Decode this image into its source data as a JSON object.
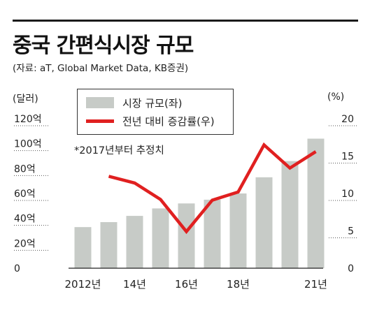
{
  "title": "중국 간편식시장 규모",
  "source": "(자료: aT, Global Market Data, KB증권)",
  "note": "*2017년부터 추정치",
  "chart_data": {
    "type": "bar",
    "categories": [
      "2012",
      "2013",
      "2014",
      "2015",
      "2016",
      "2017",
      "2018",
      "2019",
      "2020",
      "2021"
    ],
    "x_tick_labels": [
      "2012년",
      "",
      "14년",
      "",
      "16년",
      "",
      "18년",
      "",
      "",
      "21년"
    ],
    "series": [
      {
        "name": "시장 규모(좌)",
        "type": "bar",
        "axis": "left",
        "color": "#c7cbc7",
        "values": [
          33,
          37,
          42,
          48,
          52,
          55,
          60,
          73,
          86,
          104
        ]
      },
      {
        "name": "전년 대비 증감률(우)",
        "type": "line",
        "axis": "right",
        "color": "#e02020",
        "values": [
          null,
          12.3,
          11.4,
          9.2,
          4.9,
          9.1,
          10.2,
          16.5,
          13.4,
          15.6
        ]
      }
    ],
    "left_axis": {
      "unit": "(달러)",
      "ylim": [
        0,
        120
      ],
      "ticks": [
        0,
        20,
        40,
        60,
        80,
        100,
        120
      ],
      "tick_labels": [
        "0",
        "20억",
        "40억",
        "60억",
        "80억",
        "100억",
        "120억"
      ]
    },
    "right_axis": {
      "unit": "(%)",
      "ylim": [
        0,
        20
      ],
      "ticks": [
        0,
        5,
        10,
        15,
        20
      ],
      "tick_labels": [
        "0",
        "5",
        "10",
        "15",
        "20"
      ]
    },
    "grid": false,
    "legend_position": "top-left"
  }
}
